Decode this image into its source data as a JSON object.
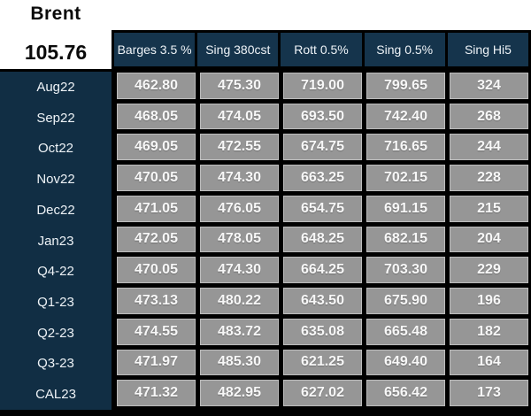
{
  "brent": {
    "label": "Brent",
    "value": "105.76"
  },
  "table": {
    "columns": [
      "Barges 3.5 %",
      "Sing 380cst",
      "Rott 0.5%",
      "Sing 0.5%",
      "Sing Hi5"
    ],
    "rows": [
      {
        "label": "Aug22",
        "values": [
          "462.80",
          "475.30",
          "719.00",
          "799.65",
          "324"
        ]
      },
      {
        "label": "Sep22",
        "values": [
          "468.05",
          "474.05",
          "693.50",
          "742.40",
          "268"
        ]
      },
      {
        "label": "Oct22",
        "values": [
          "469.05",
          "472.55",
          "674.75",
          "716.65",
          "244"
        ]
      },
      {
        "label": "Nov22",
        "values": [
          "470.05",
          "474.30",
          "663.25",
          "702.15",
          "228"
        ]
      },
      {
        "label": "Dec22",
        "values": [
          "471.05",
          "476.05",
          "654.75",
          "691.15",
          "215"
        ]
      },
      {
        "label": "Jan23",
        "values": [
          "472.05",
          "478.05",
          "648.25",
          "682.15",
          "204"
        ]
      },
      {
        "label": "Q4-22",
        "values": [
          "470.05",
          "474.30",
          "664.25",
          "703.30",
          "229"
        ]
      },
      {
        "label": "Q1-23",
        "values": [
          "473.13",
          "480.22",
          "643.50",
          "675.90",
          "196"
        ]
      },
      {
        "label": "Q2-23",
        "values": [
          "474.55",
          "483.72",
          "635.08",
          "665.48",
          "182"
        ]
      },
      {
        "label": "Q3-23",
        "values": [
          "471.97",
          "485.30",
          "621.25",
          "649.40",
          "164"
        ]
      },
      {
        "label": "CAL23",
        "values": [
          "471.32",
          "482.95",
          "627.02",
          "656.42",
          "173"
        ]
      }
    ]
  },
  "colors": {
    "header_navy": "#15344c",
    "label_navy": "#112e44",
    "cell_gray": "#969696",
    "cell_edge": "#bdbdbd",
    "grid_black": "#000000",
    "text_light": "#eef3f7",
    "text_dark": "#0a0a0a"
  }
}
